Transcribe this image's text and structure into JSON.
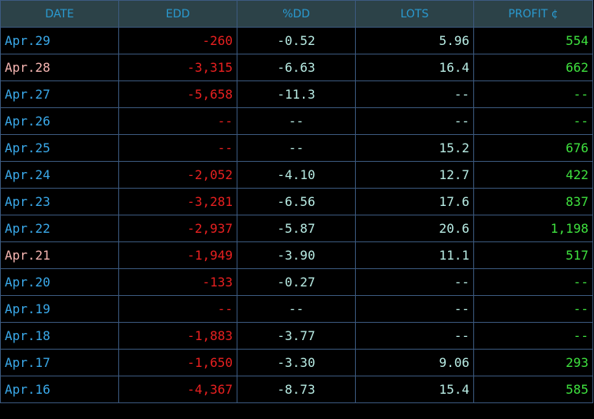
{
  "table": {
    "header": [
      "DATE",
      "EDD",
      "%DD",
      "LOTS",
      "PROFIT ¢"
    ],
    "colors": {
      "date": "#3aa8e8",
      "edd": "#e82020",
      "dd": "#b8ece4",
      "lots": "#b8ece4",
      "profit": "#3ee03e"
    },
    "rows": [
      {
        "date": "Apr.29",
        "edd": "-260",
        "dd": "-0.52",
        "lots": "5.96",
        "profit": "554",
        "date_color": "#3aa8e8"
      },
      {
        "date": "Apr.28",
        "edd": "-3,315",
        "dd": "-6.63",
        "lots": "16.4",
        "profit": "662",
        "date_color": "#f4b4b0"
      },
      {
        "date": "Apr.27",
        "edd": "-5,658",
        "dd": "-11.3",
        "lots": "--",
        "profit": "--",
        "date_color": "#3aa8e8"
      },
      {
        "date": "Apr.26",
        "edd": "--",
        "dd": "--",
        "lots": "--",
        "profit": "--",
        "date_color": "#3aa8e8"
      },
      {
        "date": "Apr.25",
        "edd": "--",
        "dd": "--",
        "lots": "15.2",
        "profit": "676",
        "date_color": "#3aa8e8"
      },
      {
        "date": "Apr.24",
        "edd": "-2,052",
        "dd": "-4.10",
        "lots": "12.7",
        "profit": "422",
        "date_color": "#3aa8e8"
      },
      {
        "date": "Apr.23",
        "edd": "-3,281",
        "dd": "-6.56",
        "lots": "17.6",
        "profit": "837",
        "date_color": "#3aa8e8"
      },
      {
        "date": "Apr.22",
        "edd": "-2,937",
        "dd": "-5.87",
        "lots": "20.6",
        "profit": "1,198",
        "date_color": "#3aa8e8"
      },
      {
        "date": "Apr.21",
        "edd": "-1,949",
        "dd": "-3.90",
        "lots": "11.1",
        "profit": "517",
        "date_color": "#f4b4b0"
      },
      {
        "date": "Apr.20",
        "edd": "-133",
        "dd": "-0.27",
        "lots": "--",
        "profit": "--",
        "date_color": "#3aa8e8"
      },
      {
        "date": "Apr.19",
        "edd": "--",
        "dd": "--",
        "lots": "--",
        "profit": "--",
        "date_color": "#3aa8e8"
      },
      {
        "date": "Apr.18",
        "edd": "-1,883",
        "dd": "-3.77",
        "lots": "--",
        "profit": "--",
        "date_color": "#3aa8e8"
      },
      {
        "date": "Apr.17",
        "edd": "-1,650",
        "dd": "-3.30",
        "lots": "9.06",
        "profit": "293",
        "date_color": "#3aa8e8"
      },
      {
        "date": "Apr.16",
        "edd": "-4,367",
        "dd": "-8.73",
        "lots": "15.4",
        "profit": "585",
        "date_color": "#3aa8e8"
      }
    ]
  }
}
